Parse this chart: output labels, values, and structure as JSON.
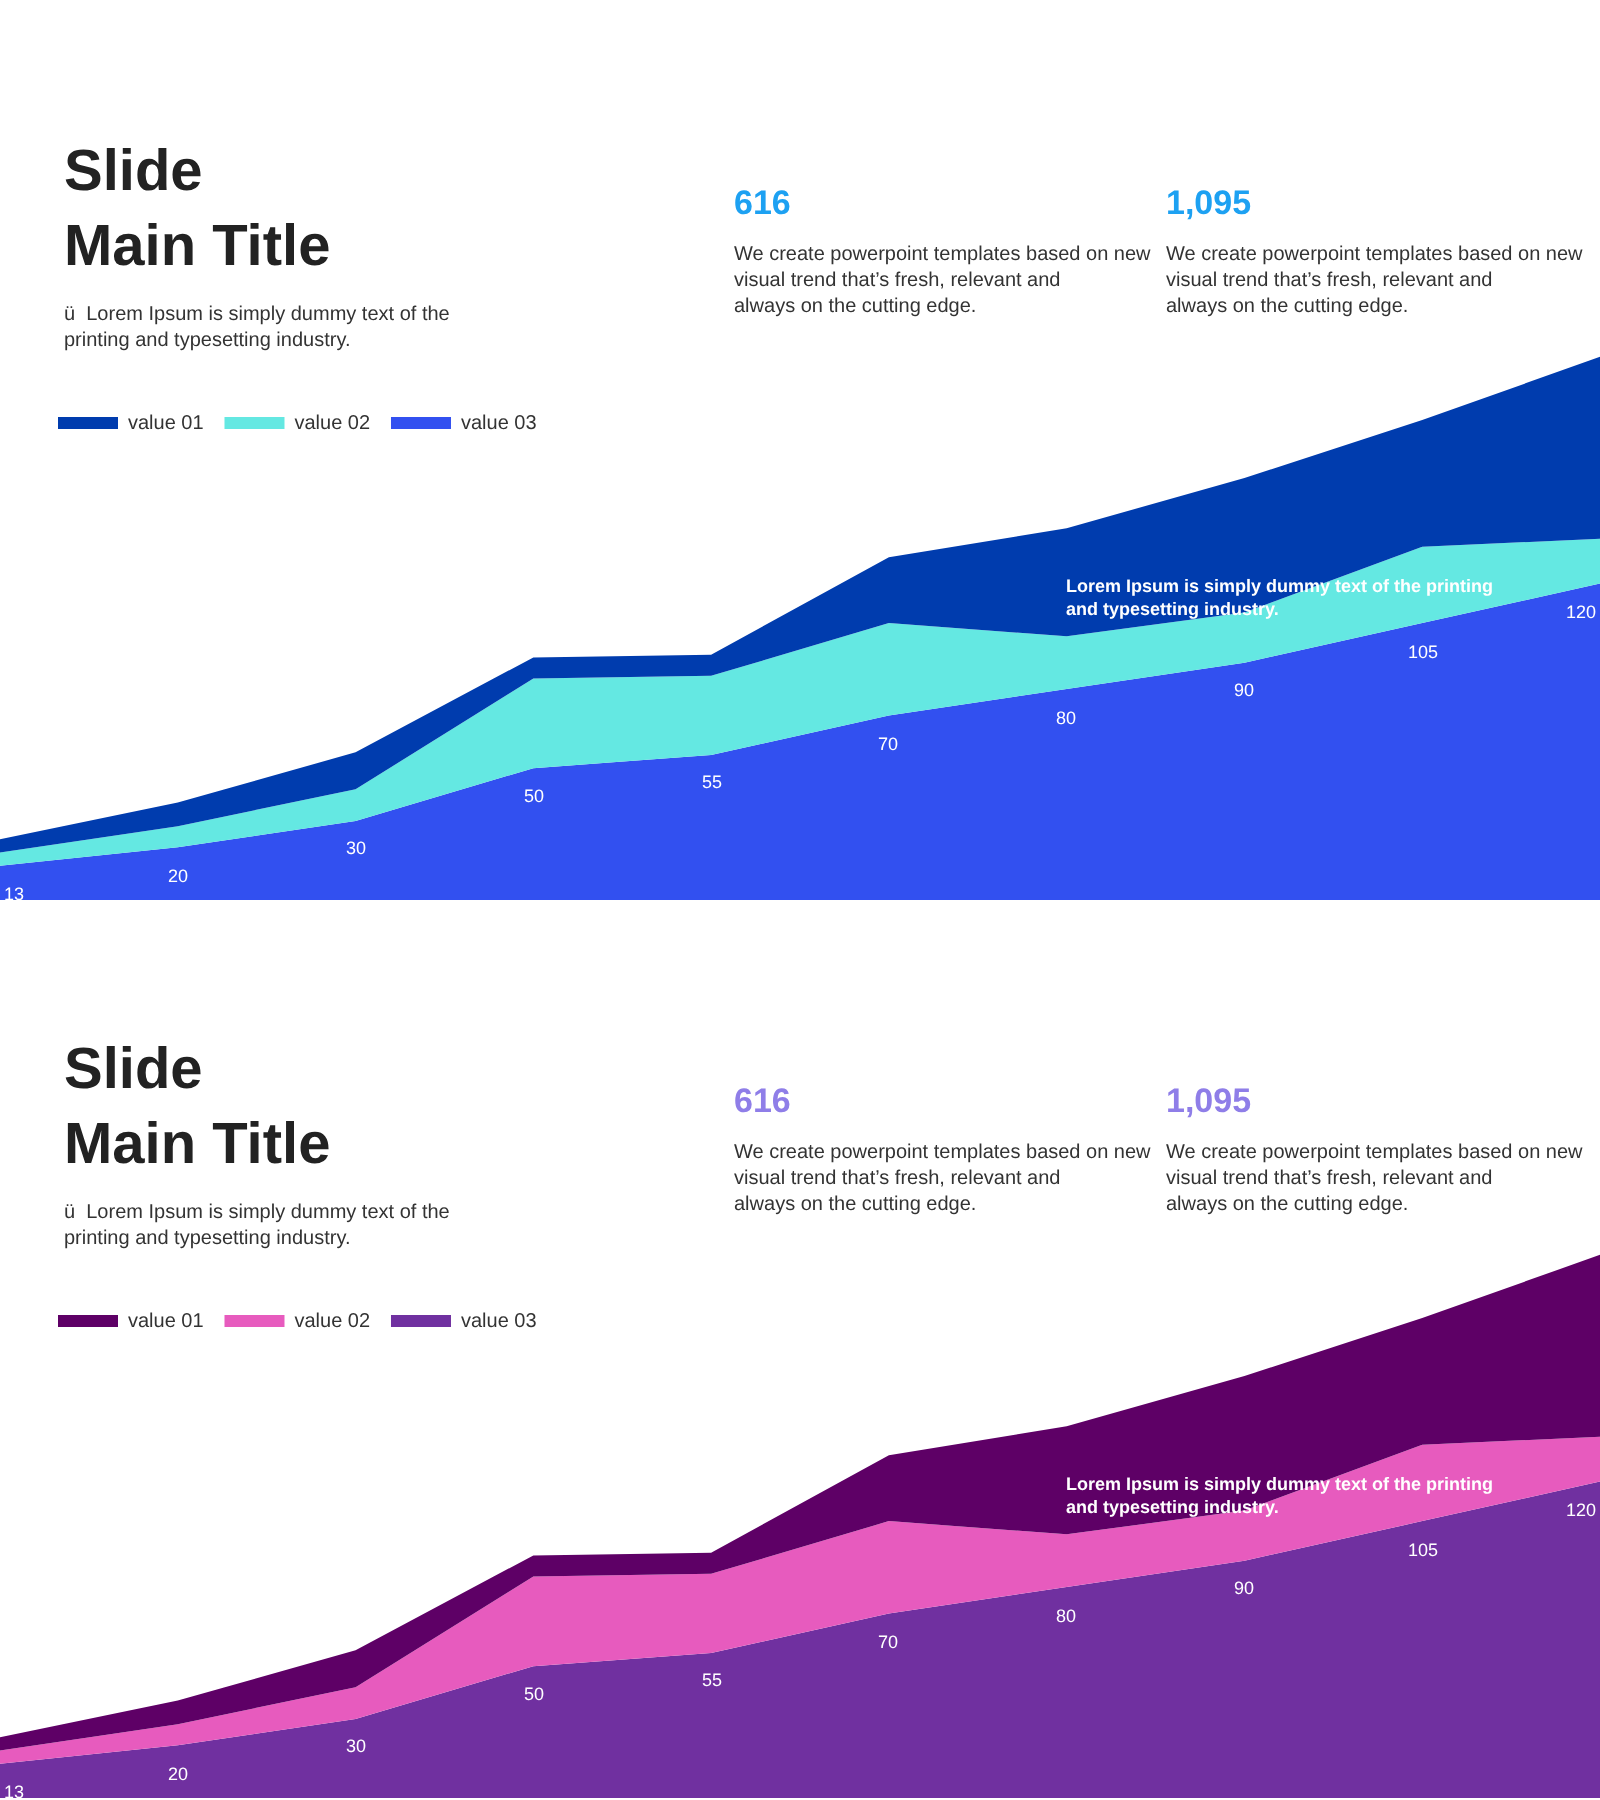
{
  "chart_data": [
    {
      "type": "area",
      "stacked": true,
      "title": "Slide\nMain Title",
      "subtitle": "ü  Lorem Ipsum is simply dummy text of the printing and typesetting industry.",
      "legend": "top left",
      "annotations": [
        "616",
        "We create powerpoint templates based on new visual trend that’s fresh, relevant and always on the cutting edge.",
        "1,095",
        "We create powerpoint templates based on new visual trend that’s fresh, relevant and always on the cutting edge.",
        "Lorem Ipsum is simply dummy text of the printing and typesetting industry."
      ],
      "categories": [
        null,
        null,
        null,
        null,
        null,
        null,
        null,
        null,
        null,
        null
      ],
      "series": [
        {
          "name": "value 03",
          "color": "#3250f0",
          "values": [
            13,
            20,
            30,
            50,
            55,
            70,
            80,
            90,
            105,
            120
          ],
          "value_labels": [
            "13",
            "20",
            "30",
            "50",
            "55",
            "70",
            "80",
            "90",
            "105",
            "120"
          ]
        },
        {
          "name": "value 02",
          "color": "#64e8e2",
          "values": [
            5,
            8,
            12,
            34,
            30,
            35,
            20,
            19,
            29,
            17
          ]
        },
        {
          "name": "value 01",
          "color": "#003cae",
          "values": [
            5,
            9,
            14,
            8,
            8,
            25,
            41,
            51,
            48,
            69
          ]
        }
      ]
    },
    {
      "type": "area",
      "stacked": true,
      "title": "Slide\nMain Title",
      "subtitle": "ü  Lorem Ipsum is simply dummy text of the printing and typesetting industry.",
      "legend": "top left",
      "annotations": [
        "616",
        "We create powerpoint templates based on new visual trend that’s fresh, relevant and always on the cutting edge.",
        "1,095",
        "We create powerpoint templates based on new visual trend that’s fresh, relevant and always on the cutting edge.",
        "Lorem Ipsum is simply dummy text of the printing and typesetting industry."
      ],
      "categories": [
        null,
        null,
        null,
        null,
        null,
        null,
        null,
        null,
        null,
        null
      ],
      "series": [
        {
          "name": "value 03",
          "color": "#7030a0",
          "values": [
            13,
            20,
            30,
            50,
            55,
            70,
            80,
            90,
            105,
            120
          ],
          "value_labels": [
            "13",
            "20",
            "30",
            "50",
            "55",
            "70",
            "80",
            "90",
            "105",
            "120"
          ]
        },
        {
          "name": "value 02",
          "color": "#e75bbe",
          "values": [
            5,
            8,
            12,
            34,
            30,
            35,
            20,
            19,
            29,
            17
          ]
        },
        {
          "name": "value 01",
          "color": "#5e0066",
          "values": [
            5,
            9,
            14,
            8,
            8,
            25,
            41,
            51,
            48,
            69
          ]
        }
      ]
    }
  ]
}
